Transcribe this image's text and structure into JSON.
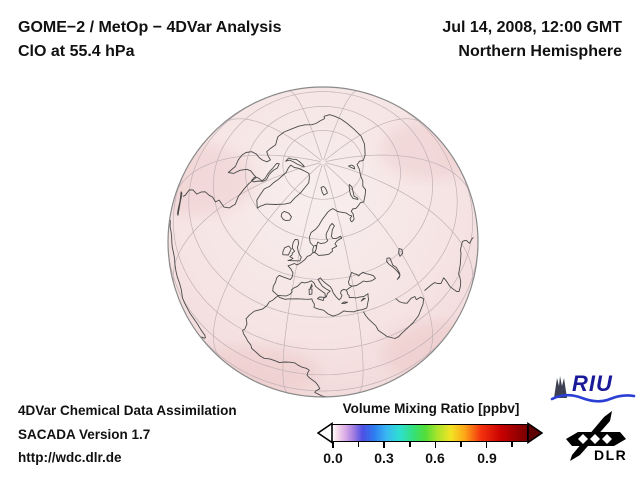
{
  "header": {
    "title_line1": "GOME−2 / MetOp − 4DVar Analysis",
    "title_line2": "ClO at 55.4 hPa",
    "datetime": "Jul 14, 2008, 12:00 GMT",
    "hemisphere": "Northern Hemisphere"
  },
  "footer": {
    "line1": "4DVar Chemical Data Assimilation",
    "line2": "SACADA Version 1.7",
    "line3": "http://wdc.dlr.de"
  },
  "colorbar": {
    "title": "Volume Mixing Ratio [ppbv]",
    "tick_labels": [
      "0.0",
      "0.3",
      "0.6",
      "0.9"
    ],
    "major_ticks": [
      0.0,
      0.3,
      0.6,
      0.9
    ],
    "minor_ticks": [
      0.15,
      0.45,
      0.75,
      1.05
    ],
    "range": [
      0.0,
      1.15
    ],
    "stops": [
      {
        "v": 0.0,
        "c": "#ffffff"
      },
      {
        "v": 0.03,
        "c": "#f6dcec"
      },
      {
        "v": 0.08,
        "c": "#d9a9e6"
      },
      {
        "v": 0.13,
        "c": "#9d7ae0"
      },
      {
        "v": 0.18,
        "c": "#4b50e4"
      },
      {
        "v": 0.25,
        "c": "#2e7df0"
      },
      {
        "v": 0.32,
        "c": "#3ab6f2"
      },
      {
        "v": 0.4,
        "c": "#2ee0d0"
      },
      {
        "v": 0.48,
        "c": "#35e07a"
      },
      {
        "v": 0.55,
        "c": "#52dd3a"
      },
      {
        "v": 0.62,
        "c": "#a8e42c"
      },
      {
        "v": 0.7,
        "c": "#f2e324"
      },
      {
        "v": 0.78,
        "c": "#fca918"
      },
      {
        "v": 0.88,
        "c": "#f4310e"
      },
      {
        "v": 1.0,
        "c": "#c60000"
      },
      {
        "v": 1.15,
        "c": "#7a0000"
      }
    ],
    "underflow_arrow_color": "#ffffff",
    "overflow_arrow_color": "#5e0000"
  },
  "logos": {
    "riu": "RIU",
    "dlr": "DLR"
  },
  "globe_colors": {
    "field_fill_center": "#f8eeee",
    "field_fill_edge": "#efd4d4",
    "graticule": "#c1b2b6",
    "coastline": "#4a4a4a",
    "limb": "#8a8a8a"
  },
  "chart_data": {
    "type": "heatmap",
    "title": "ClO at 55.4 hPa — GOME−2 / MetOp − 4DVar Analysis",
    "subtitle": "Jul 14, 2008, 12:00 GMT, Northern Hemisphere",
    "projection": "orthographic globe, Northern Hemisphere, centered near 59N 15E",
    "graticule": {
      "lat_step_deg": 15,
      "lon_step_deg": 30
    },
    "colorbar_label": "Volume Mixing Ratio [ppbv]",
    "colorbar_ticks": [
      0.0,
      0.3,
      0.6,
      0.9
    ],
    "value_range_ppbv": [
      0.0,
      1.15
    ],
    "observed_field": "near-uniform pale pink shading over the whole visible hemisphere, approximately 0.0-0.1 ppbv, very slightly higher toward the limb and low latitudes"
  }
}
